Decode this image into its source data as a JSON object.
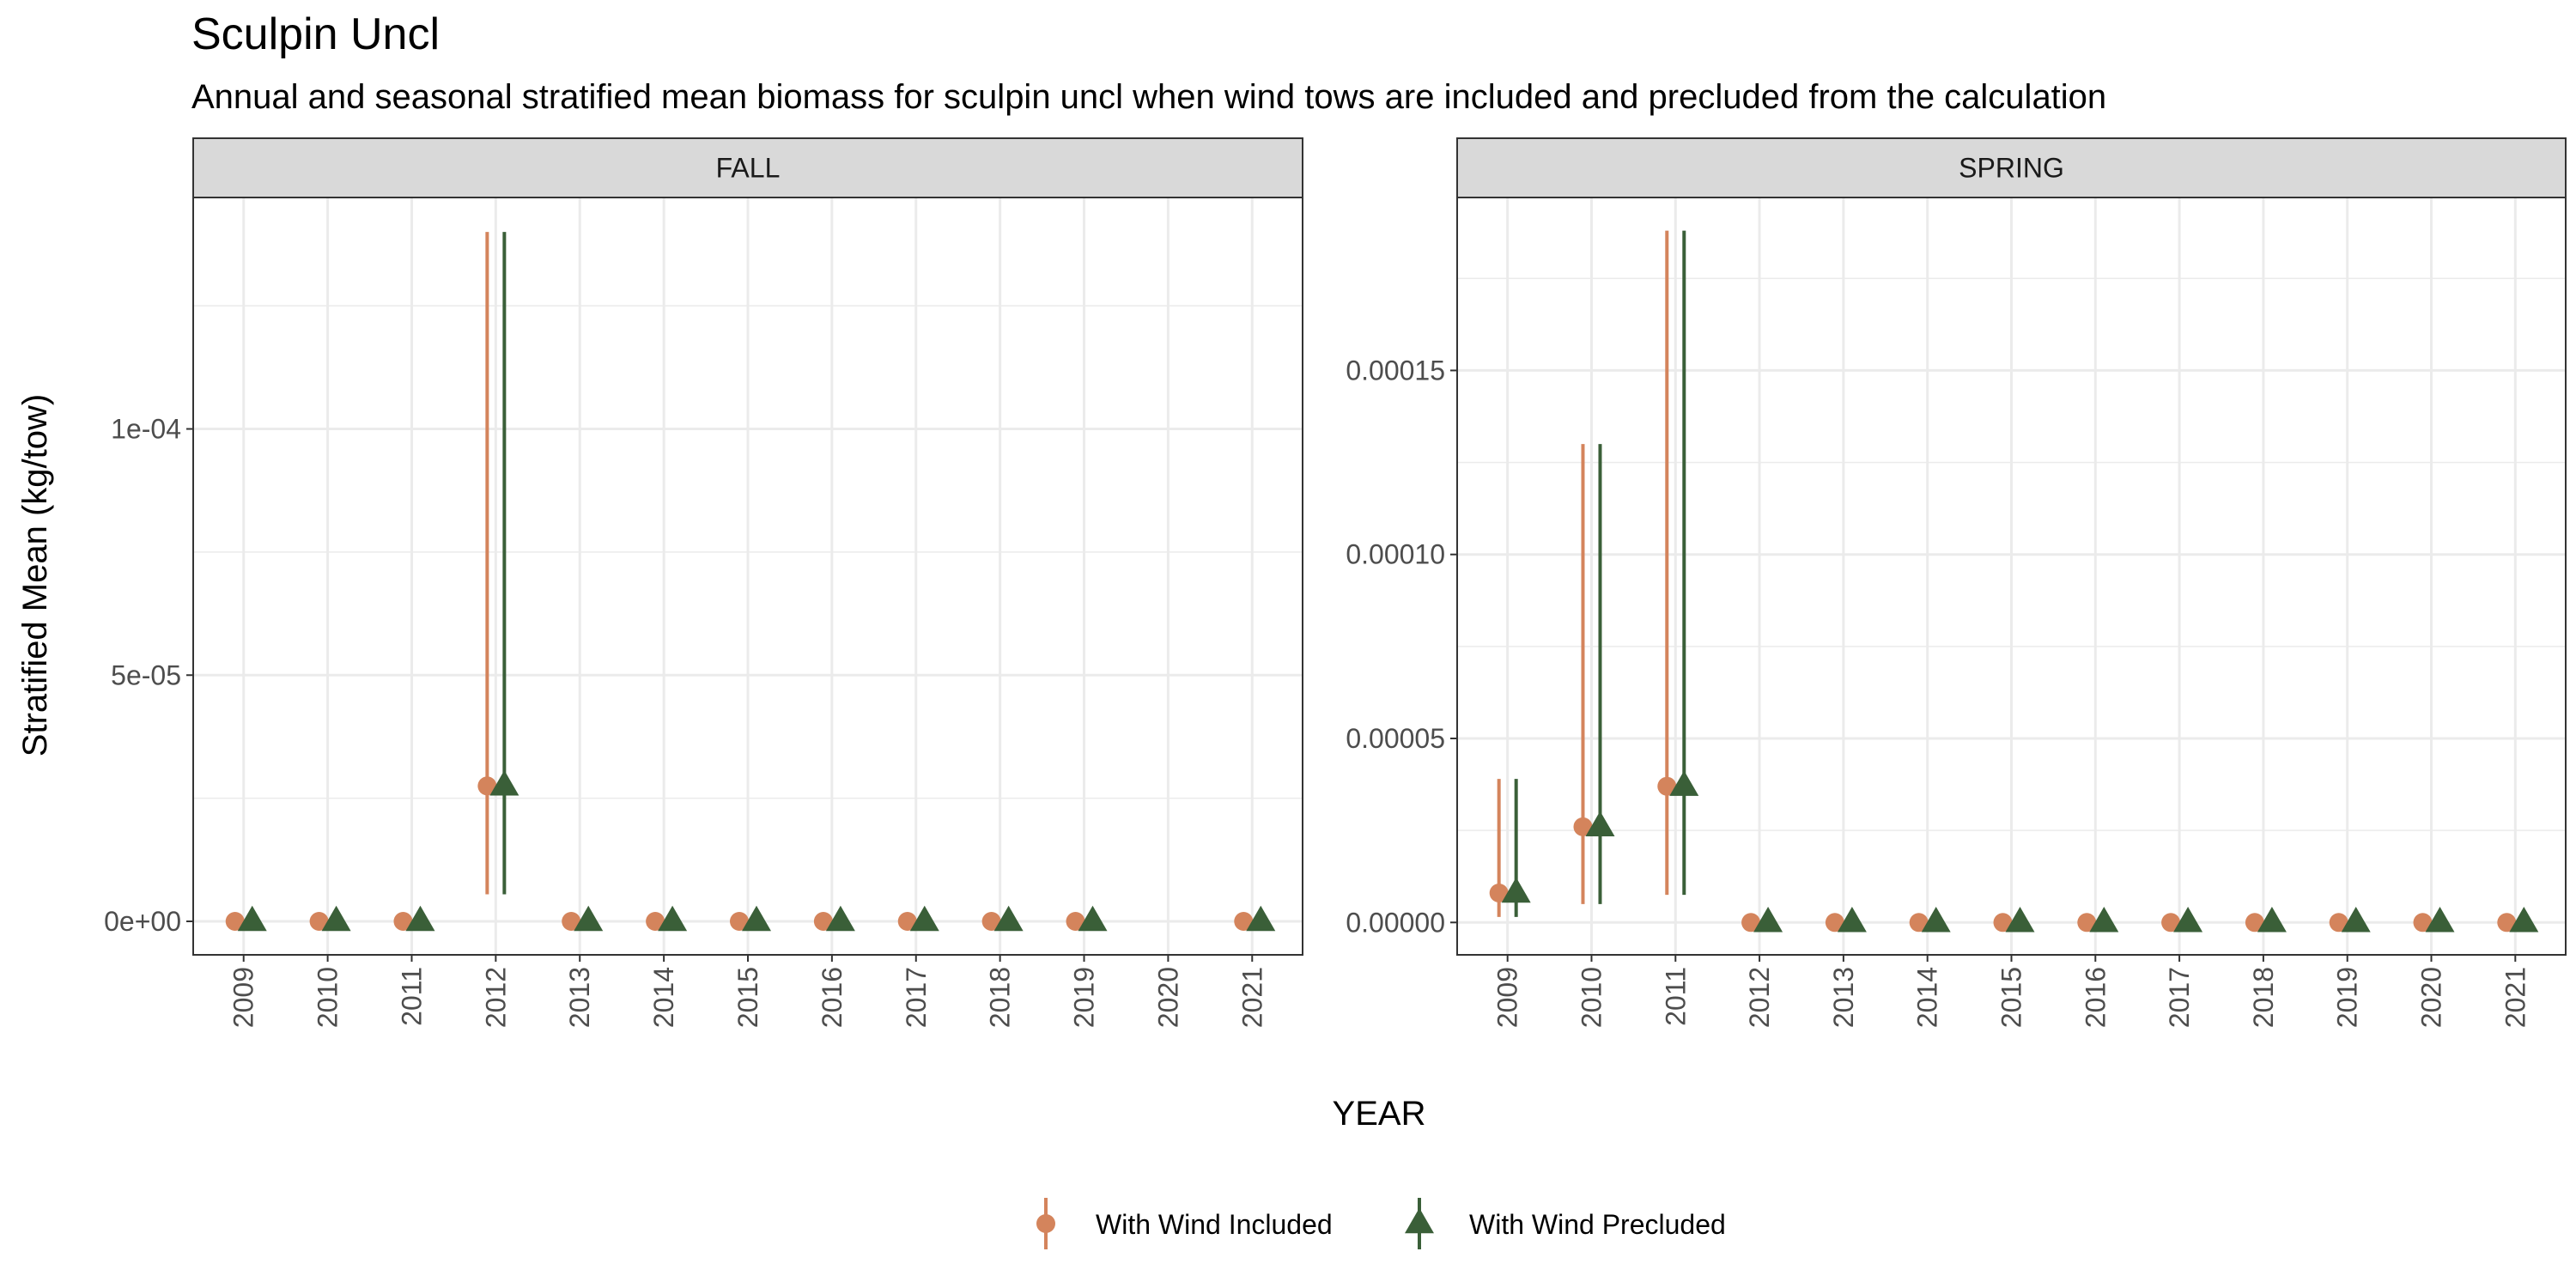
{
  "title": "Sculpin Uncl",
  "subtitle": "Annual and seasonal stratified mean biomass for sculpin uncl when wind tows are included and precluded from the calculation",
  "colors": {
    "included": "#D4845C",
    "precluded": "#3A5F38",
    "strip": "#D9D9D9",
    "grid": "#EBEBEB",
    "panel_border": "#333333",
    "text": "#4D4D4D"
  },
  "chart_data": {
    "type": "scatter",
    "xlabel": "YEAR",
    "ylabel": "Stratified Mean (kg/tow)",
    "legend": {
      "position": "bottom",
      "entries": [
        {
          "key": "included",
          "label": "With Wind Included",
          "marker": "circle"
        },
        {
          "key": "precluded",
          "label": "With Wind Precluded",
          "marker": "triangle"
        }
      ]
    },
    "grid": true,
    "panels": [
      {
        "name": "FALL",
        "x": [
          2009,
          2010,
          2011,
          2012,
          2013,
          2014,
          2015,
          2016,
          2017,
          2018,
          2019,
          2020,
          2021
        ],
        "x_tick_labels": [
          "2009",
          "2010",
          "2011",
          "2012",
          "2013",
          "2014",
          "2015",
          "2016",
          "2017",
          "2018",
          "2019",
          "2020",
          "2021"
        ],
        "y_ticks": [
          0,
          5e-05,
          0.0001
        ],
        "y_tick_labels": [
          "0e+00",
          "5e-05",
          "1e-04"
        ],
        "ylim": [
          -6.8e-06,
          0.000147
        ],
        "series": [
          {
            "key": "included",
            "points": [
              {
                "x": 2009,
                "y": 0
              },
              {
                "x": 2010,
                "y": 0
              },
              {
                "x": 2011,
                "y": 0
              },
              {
                "x": 2012,
                "y": 2.75e-05,
                "lo": 5.5e-06,
                "hi": 0.00014
              },
              {
                "x": 2013,
                "y": 0
              },
              {
                "x": 2014,
                "y": 0
              },
              {
                "x": 2015,
                "y": 0
              },
              {
                "x": 2016,
                "y": 0
              },
              {
                "x": 2017,
                "y": 0
              },
              {
                "x": 2018,
                "y": 0
              },
              {
                "x": 2019,
                "y": 0
              },
              {
                "x": 2021,
                "y": 0
              }
            ]
          },
          {
            "key": "precluded",
            "points": [
              {
                "x": 2009,
                "y": 0
              },
              {
                "x": 2010,
                "y": 0
              },
              {
                "x": 2011,
                "y": 0
              },
              {
                "x": 2012,
                "y": 2.75e-05,
                "lo": 5.5e-06,
                "hi": 0.00014
              },
              {
                "x": 2013,
                "y": 0
              },
              {
                "x": 2014,
                "y": 0
              },
              {
                "x": 2015,
                "y": 0
              },
              {
                "x": 2016,
                "y": 0
              },
              {
                "x": 2017,
                "y": 0
              },
              {
                "x": 2018,
                "y": 0
              },
              {
                "x": 2019,
                "y": 0
              },
              {
                "x": 2021,
                "y": 0
              }
            ]
          }
        ]
      },
      {
        "name": "SPRING",
        "x": [
          2009,
          2010,
          2011,
          2012,
          2013,
          2014,
          2015,
          2016,
          2017,
          2018,
          2019,
          2020,
          2021
        ],
        "x_tick_labels": [
          "2009",
          "2010",
          "2011",
          "2012",
          "2013",
          "2014",
          "2015",
          "2016",
          "2017",
          "2018",
          "2019",
          "2020",
          "2021"
        ],
        "y_ticks": [
          0,
          5e-05,
          0.0001,
          0.00015
        ],
        "y_tick_labels": [
          "0.00000",
          "0.00005",
          "0.00010",
          "0.00015"
        ],
        "ylim": [
          -8.8e-06,
          0.000197
        ],
        "series": [
          {
            "key": "included",
            "points": [
              {
                "x": 2009,
                "y": 8e-06,
                "lo": 1.5e-06,
                "hi": 3.9e-05
              },
              {
                "x": 2010,
                "y": 2.6e-05,
                "lo": 5e-06,
                "hi": 0.00013
              },
              {
                "x": 2011,
                "y": 3.7e-05,
                "lo": 7.5e-06,
                "hi": 0.000188
              },
              {
                "x": 2012,
                "y": 0
              },
              {
                "x": 2013,
                "y": 0
              },
              {
                "x": 2014,
                "y": 0
              },
              {
                "x": 2015,
                "y": 0
              },
              {
                "x": 2016,
                "y": 0
              },
              {
                "x": 2017,
                "y": 0
              },
              {
                "x": 2018,
                "y": 0
              },
              {
                "x": 2019,
                "y": 0
              },
              {
                "x": 2020,
                "y": 0
              },
              {
                "x": 2021,
                "y": 0
              }
            ]
          },
          {
            "key": "precluded",
            "points": [
              {
                "x": 2009,
                "y": 8e-06,
                "lo": 1.5e-06,
                "hi": 3.9e-05
              },
              {
                "x": 2010,
                "y": 2.6e-05,
                "lo": 5e-06,
                "hi": 0.00013
              },
              {
                "x": 2011,
                "y": 3.7e-05,
                "lo": 7.5e-06,
                "hi": 0.000188
              },
              {
                "x": 2012,
                "y": 0
              },
              {
                "x": 2013,
                "y": 0
              },
              {
                "x": 2014,
                "y": 0
              },
              {
                "x": 2015,
                "y": 0
              },
              {
                "x": 2016,
                "y": 0
              },
              {
                "x": 2017,
                "y": 0
              },
              {
                "x": 2018,
                "y": 0
              },
              {
                "x": 2019,
                "y": 0
              },
              {
                "x": 2020,
                "y": 0
              },
              {
                "x": 2021,
                "y": 0
              }
            ]
          }
        ]
      }
    ]
  }
}
